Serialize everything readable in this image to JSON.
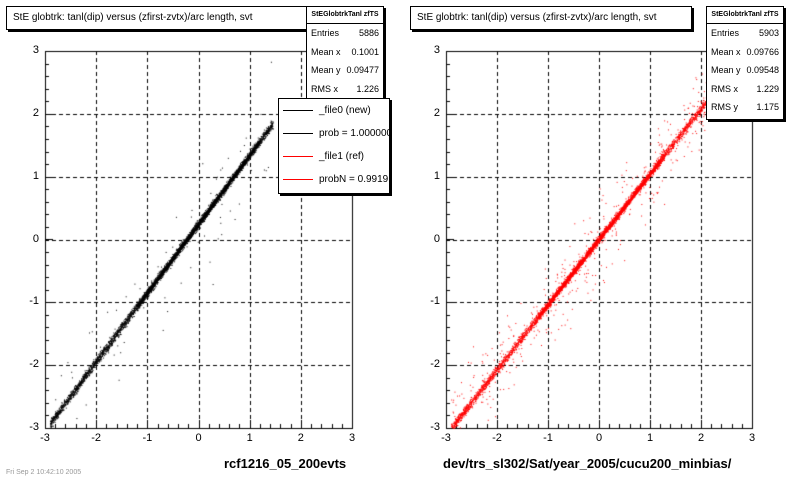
{
  "chart_data": [
    {
      "type": "scatter",
      "title": "StE globtrk: tanl(dip) versus (zfirst-zvtx)/arc length, svt",
      "xlabel": "rcf1216_05_200evts",
      "ylabel": "",
      "xlim": [
        -3,
        3
      ],
      "ylim": [
        -3,
        3
      ],
      "xticks": [
        "-3",
        "-2",
        "-1",
        "0",
        "1",
        "2",
        "3"
      ],
      "yticks": [
        "-3",
        "-2",
        "-1",
        "0",
        "1",
        "2",
        "3"
      ],
      "grid": true,
      "series": [
        {
          "name": "_file0 (new)",
          "color": "#000000",
          "trend": {
            "x": [
              -2.9,
              1.45
            ],
            "y": [
              -2.92,
              1.85
            ]
          }
        }
      ],
      "stats": {
        "name": "StEGlobtrkTanl zfTS",
        "Entries": "5886",
        "Mean x": "0.1001",
        "Mean y": "0.09477",
        "RMS x": "1.226"
      },
      "legend": {
        "position": "top-right",
        "entries": [
          {
            "label": "_file0 (new)",
            "color": "#000000"
          },
          {
            "label": "prob = 1.000000",
            "color": "#000000"
          },
          {
            "label": "_file1 (ref)",
            "color": "#ff0000"
          },
          {
            "label": "probN = 0.991919",
            "color": "#ff0000"
          }
        ]
      }
    },
    {
      "type": "scatter",
      "title": "StE globtrk: tanl(dip) versus (zfirst-zvtx)/arc length, svt",
      "xlabel": "dev/trs_sl302/Sat/year_2005/cucu200_minbias/",
      "ylabel": "",
      "xlim": [
        -3,
        3
      ],
      "ylim": [
        -3,
        3
      ],
      "xticks": [
        "-3",
        "-2",
        "-1",
        "0",
        "1",
        "2",
        "3"
      ],
      "yticks": [
        "-3",
        "-2",
        "-1",
        "0",
        "1",
        "2",
        "3"
      ],
      "grid": true,
      "series": [
        {
          "name": "_file1 (ref)",
          "color": "#ff0000",
          "trend": {
            "x": [
              -2.9,
              2.1
            ],
            "y": [
              -3.0,
              2.2
            ]
          }
        }
      ],
      "stats": {
        "name": "StEGlobtrkTanl zfTS",
        "Entries": "5903",
        "Mean x": "0.09766",
        "Mean y": "0.09548",
        "RMS x": "1.229",
        "RMS y": "1.175"
      }
    }
  ],
  "footer": "Fri Sep 2 10:42:10 2005"
}
